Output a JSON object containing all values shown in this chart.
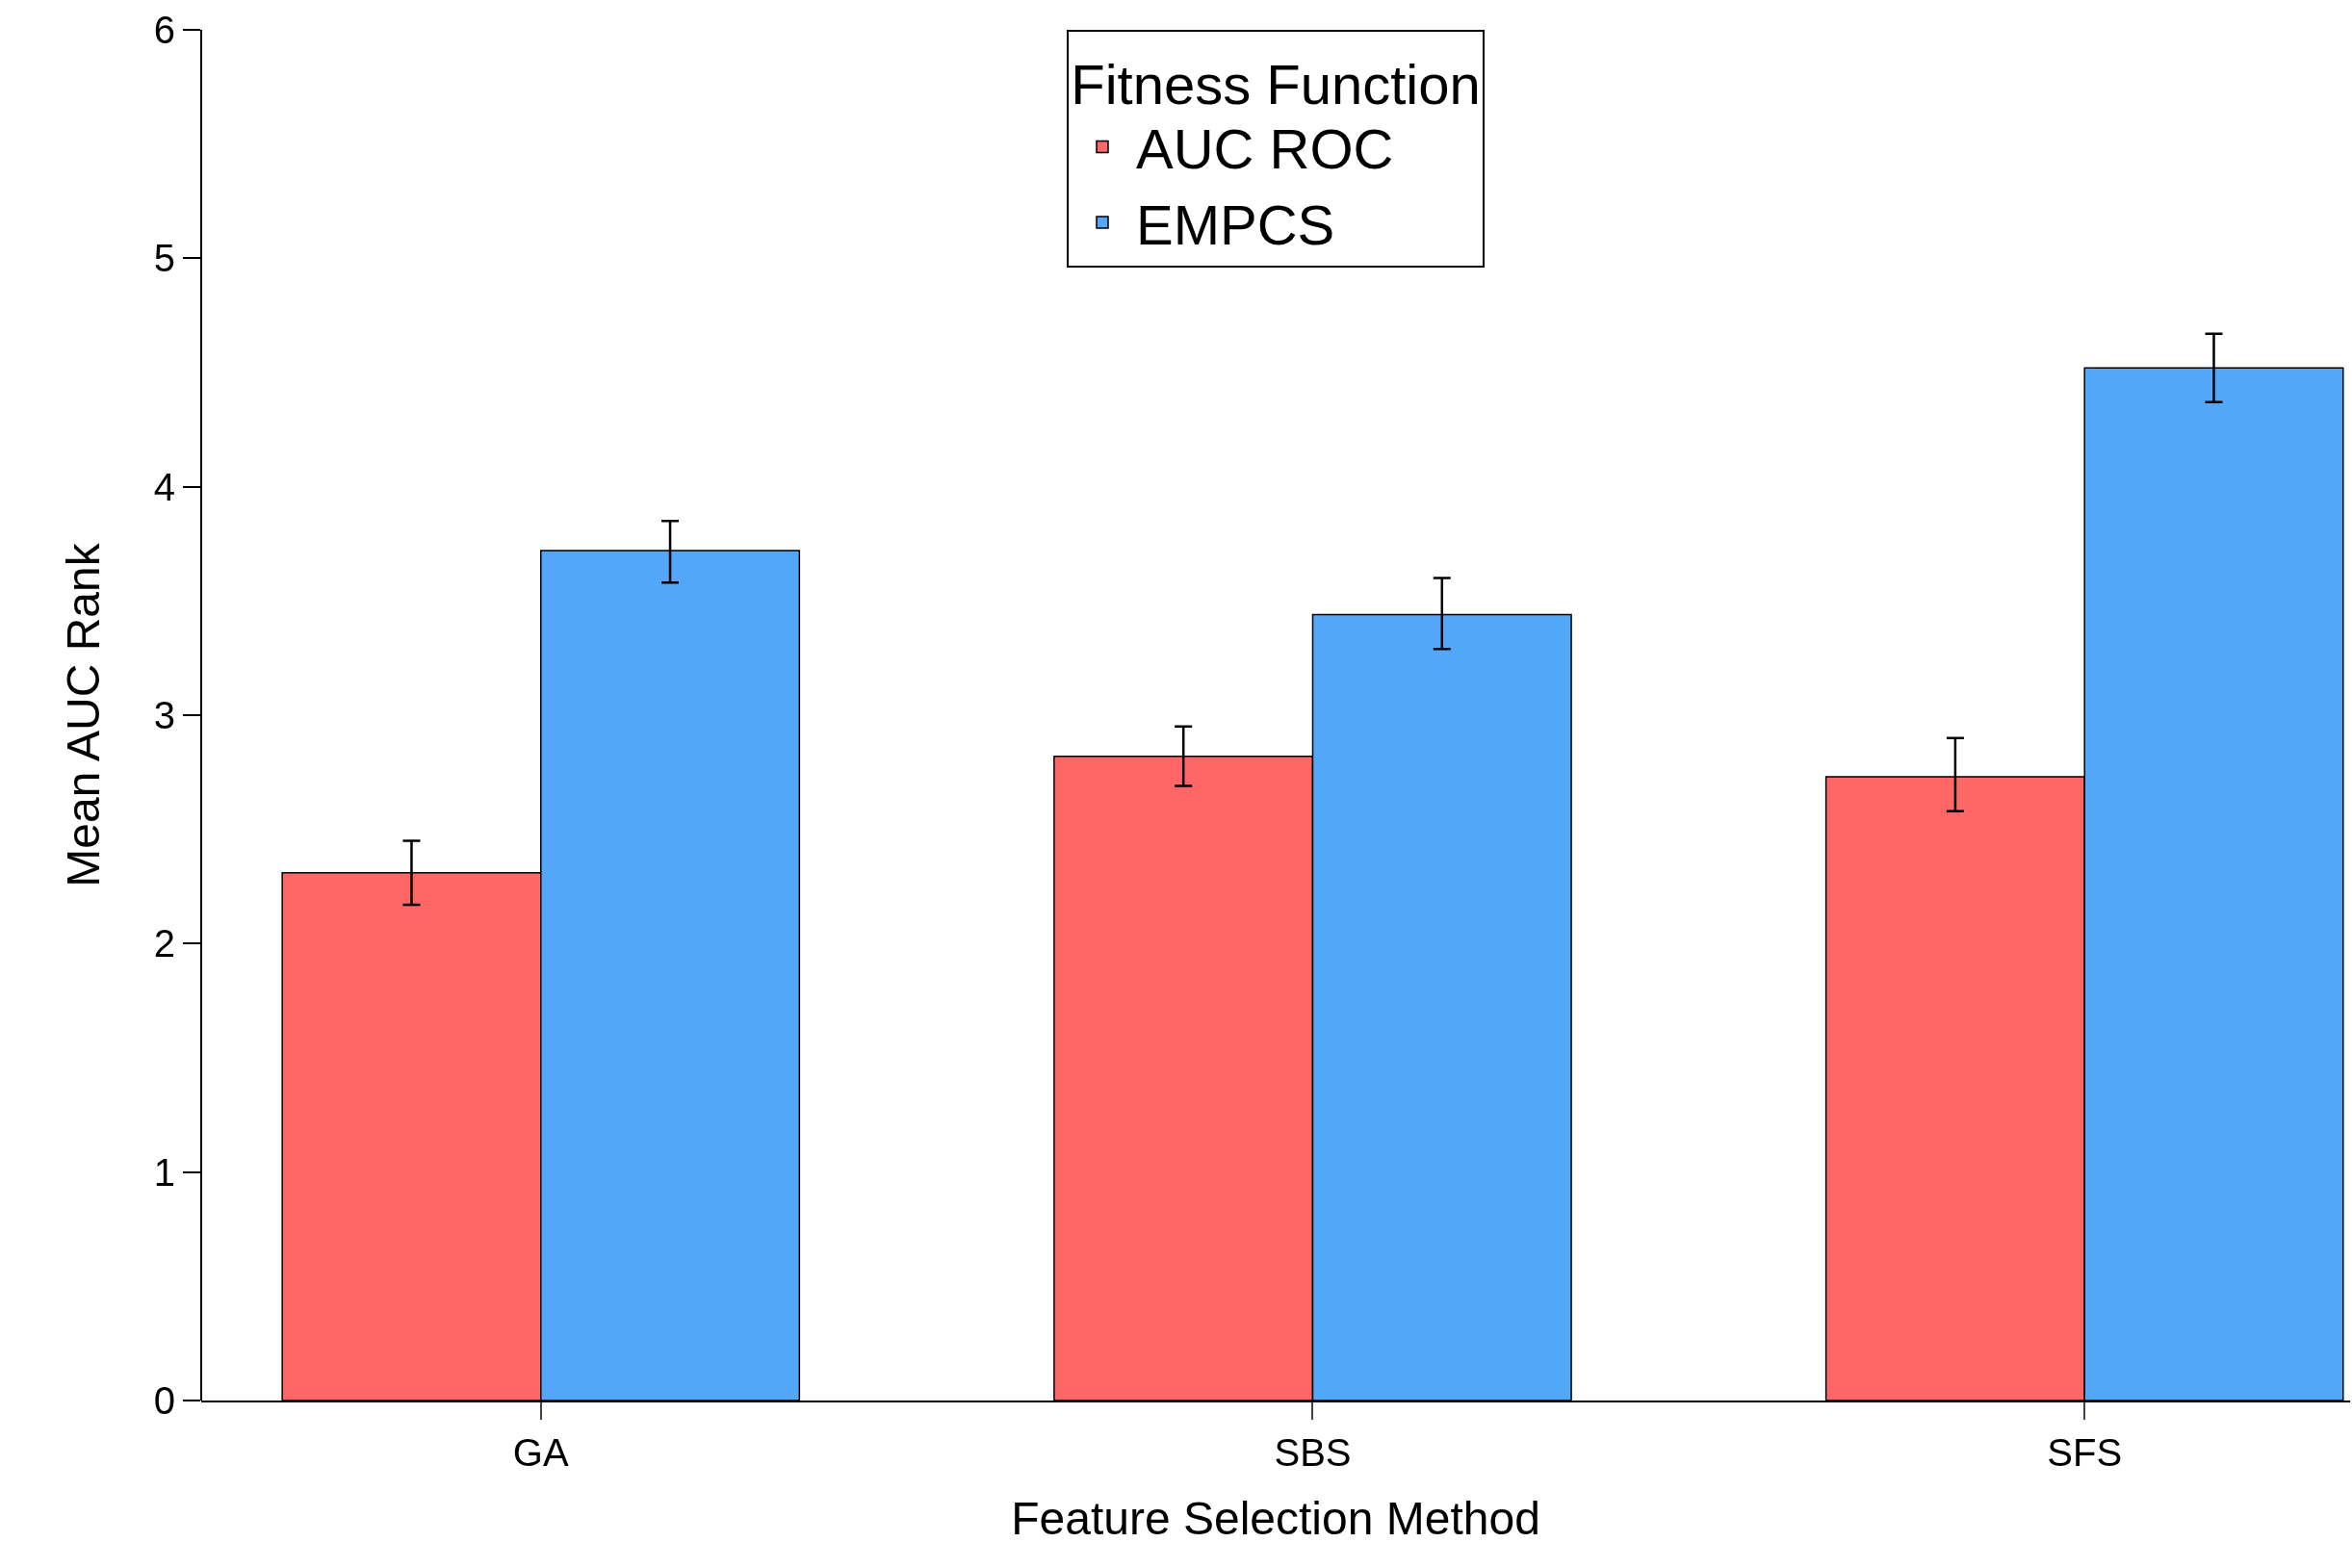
{
  "chart_data": {
    "type": "bar",
    "xlabel": "Feature Selection Method",
    "ylabel": "Mean AUC Rank",
    "legend_title": "Fitness Function",
    "categories": [
      "GA",
      "SBS",
      "SFS"
    ],
    "series": [
      {
        "name": "AUC ROC",
        "color": "#ff6666",
        "values": [
          2.31,
          2.82,
          2.73
        ],
        "errors": [
          [
            2.17,
            2.45
          ],
          [
            2.69,
            2.95
          ],
          [
            2.58,
            2.9
          ]
        ]
      },
      {
        "name": "EMPCS",
        "color": "#52a7f9",
        "values": [
          3.72,
          3.44,
          4.52
        ],
        "errors": [
          [
            3.58,
            3.85
          ],
          [
            3.29,
            3.6
          ],
          [
            4.37,
            4.67
          ]
        ]
      }
    ],
    "ylim": [
      0,
      6
    ],
    "yticks": [
      0,
      1,
      2,
      3,
      4,
      5,
      6
    ],
    "grid": false,
    "legend": "top"
  }
}
